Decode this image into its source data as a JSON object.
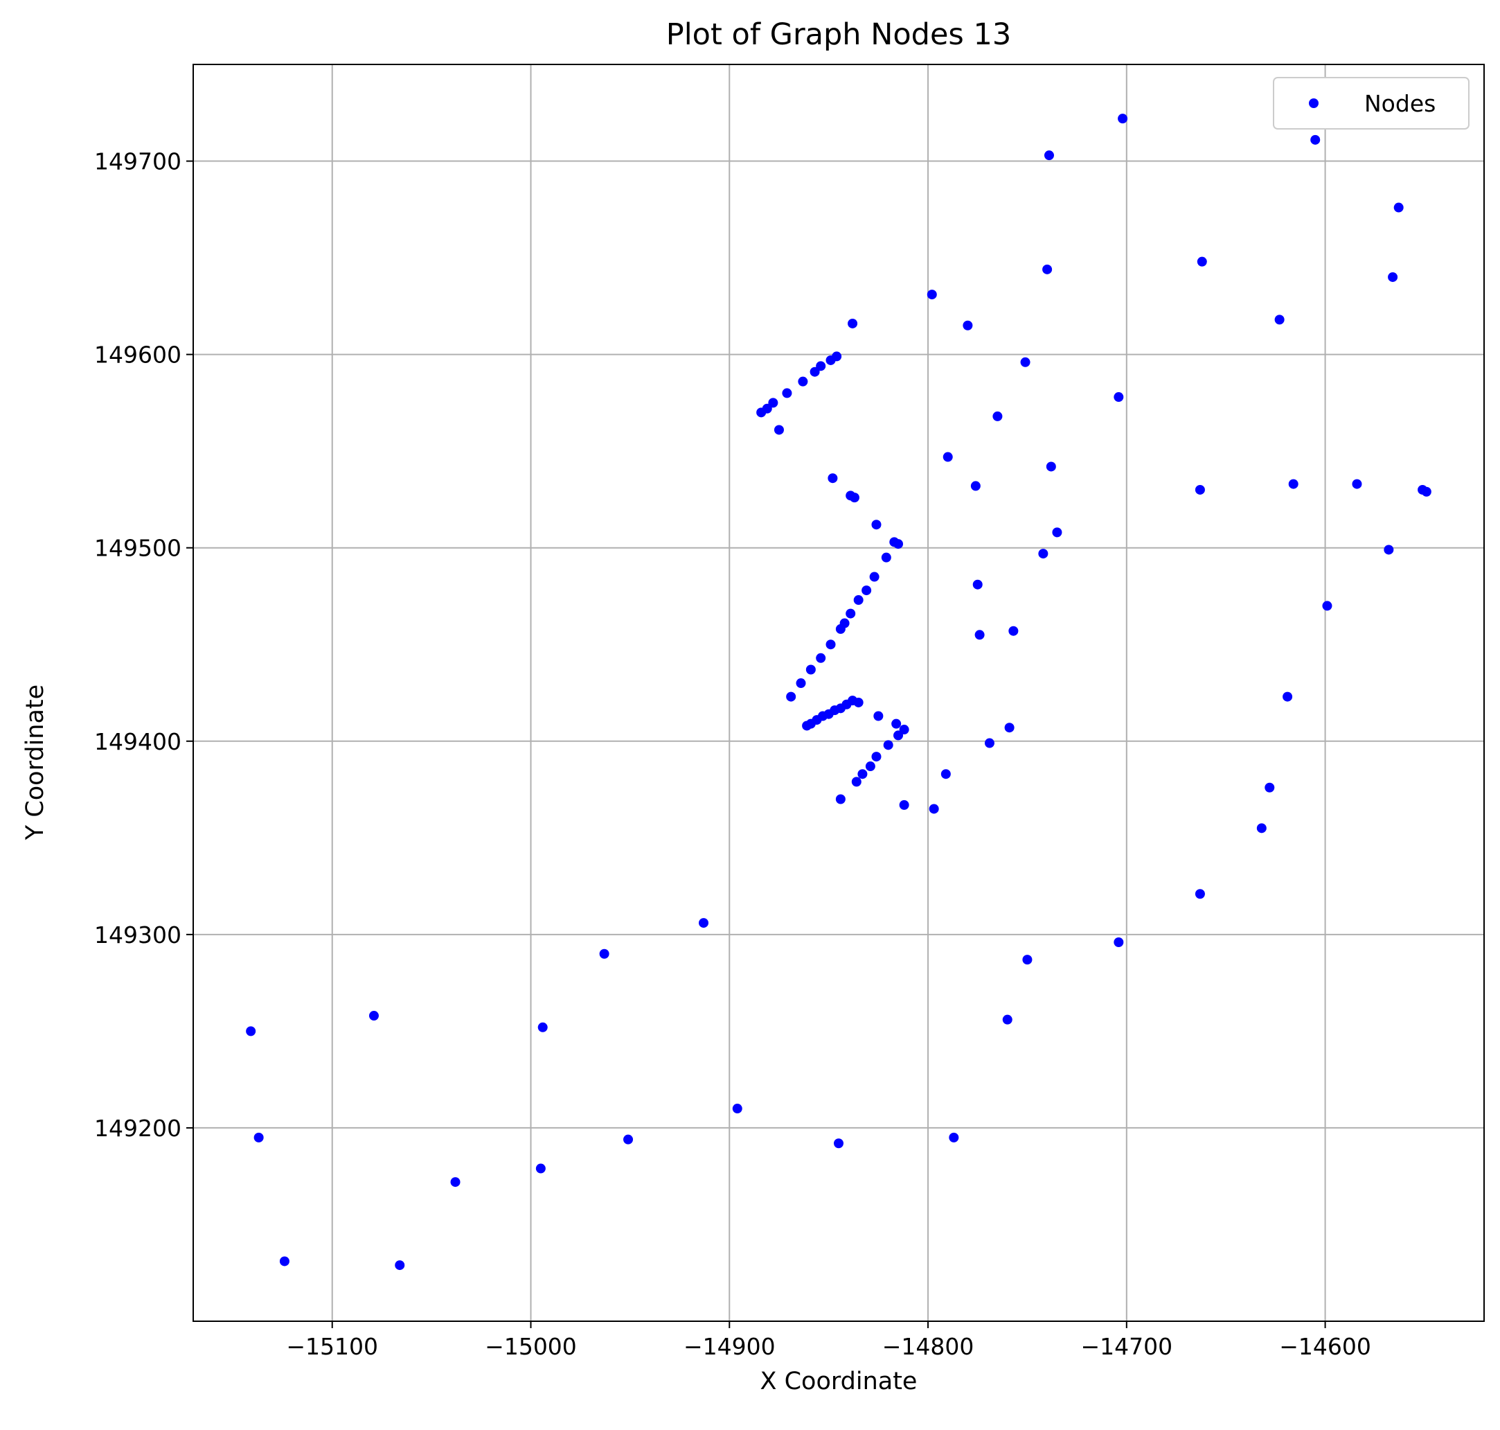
{
  "chart_data": {
    "type": "scatter",
    "title": "Plot of Graph Nodes 13",
    "xlabel": "X Coordinate",
    "ylabel": "Y Coordinate",
    "xlim": [
      -15170,
      -14520
    ],
    "ylim": [
      149100,
      149750
    ],
    "xticks": [
      -15100,
      -15000,
      -14900,
      -14800,
      -14700,
      -14600
    ],
    "xtick_labels": [
      "−15100",
      "−15000",
      "−14900",
      "−14800",
      "−14700",
      "−14600"
    ],
    "yticks": [
      149200,
      149300,
      149400,
      149500,
      149600,
      149700
    ],
    "ytick_labels": [
      "149200",
      "149300",
      "149400",
      "149500",
      "149600",
      "149700"
    ],
    "grid": true,
    "legend_position": "upper right",
    "series": [
      {
        "name": "Nodes",
        "color": "#0000ff",
        "marker": "circle",
        "points": [
          [
            -15141,
            149250
          ],
          [
            -15137,
            149195
          ],
          [
            -15124,
            149131
          ],
          [
            -15079,
            149258
          ],
          [
            -15066,
            149129
          ],
          [
            -15038,
            149172
          ],
          [
            -14995,
            149179
          ],
          [
            -14994,
            149252
          ],
          [
            -14963,
            149290
          ],
          [
            -14951,
            149194
          ],
          [
            -14913,
            149306
          ],
          [
            -14896,
            149210
          ],
          [
            -14845,
            149192
          ],
          [
            -14787,
            149195
          ],
          [
            -14760,
            149256
          ],
          [
            -14750,
            149287
          ],
          [
            -14704,
            149296
          ],
          [
            -14663,
            149321
          ],
          [
            -14632,
            149355
          ],
          [
            -14628,
            149376
          ],
          [
            -14619,
            149423
          ],
          [
            -14599,
            149470
          ],
          [
            -14568,
            149499
          ],
          [
            -14584,
            149533
          ],
          [
            -14616,
            149533
          ],
          [
            -14663,
            149530
          ],
          [
            -14551,
            149530
          ],
          [
            -14549,
            149529
          ],
          [
            -14702,
            149722
          ],
          [
            -14605,
            149711
          ],
          [
            -14739,
            149703
          ],
          [
            -14563,
            149676
          ],
          [
            -14662,
            149648
          ],
          [
            -14740,
            149644
          ],
          [
            -14566,
            149640
          ],
          [
            -14798,
            149631
          ],
          [
            -14623,
            149618
          ],
          [
            -14838,
            149616
          ],
          [
            -14780,
            149615
          ],
          [
            -14751,
            149596
          ],
          [
            -14704,
            149578
          ],
          [
            -14765,
            149568
          ],
          [
            -14790,
            149547
          ],
          [
            -14738,
            149542
          ],
          [
            -14776,
            149532
          ],
          [
            -14735,
            149508
          ],
          [
            -14742,
            149497
          ],
          [
            -14775,
            149481
          ],
          [
            -14774,
            149455
          ],
          [
            -14757,
            149457
          ],
          [
            -14759,
            149407
          ],
          [
            -14769,
            149399
          ],
          [
            -14791,
            149383
          ],
          [
            -14797,
            149365
          ],
          [
            -14812,
            149367
          ],
          [
            -14844,
            149370
          ],
          [
            -14846,
            149599
          ],
          [
            -14849,
            149597
          ],
          [
            -14854,
            149594
          ],
          [
            -14857,
            149591
          ],
          [
            -14863,
            149586
          ],
          [
            -14871,
            149580
          ],
          [
            -14878,
            149575
          ],
          [
            -14881,
            149572
          ],
          [
            -14884,
            149570
          ],
          [
            -14875,
            149561
          ],
          [
            -14848,
            149536
          ],
          [
            -14839,
            149527
          ],
          [
            -14837,
            149526
          ],
          [
            -14826,
            149512
          ],
          [
            -14817,
            149503
          ],
          [
            -14815,
            149502
          ],
          [
            -14821,
            149495
          ],
          [
            -14827,
            149485
          ],
          [
            -14831,
            149478
          ],
          [
            -14835,
            149473
          ],
          [
            -14839,
            149466
          ],
          [
            -14842,
            149461
          ],
          [
            -14844,
            149458
          ],
          [
            -14849,
            149450
          ],
          [
            -14854,
            149443
          ],
          [
            -14859,
            149437
          ],
          [
            -14864,
            149430
          ],
          [
            -14869,
            149423
          ],
          [
            -14835,
            149420
          ],
          [
            -14838,
            149421
          ],
          [
            -14841,
            149419
          ],
          [
            -14844,
            149417
          ],
          [
            -14847,
            149416
          ],
          [
            -14850,
            149414
          ],
          [
            -14853,
            149413
          ],
          [
            -14856,
            149411
          ],
          [
            -14859,
            149409
          ],
          [
            -14861,
            149408
          ],
          [
            -14825,
            149413
          ],
          [
            -14816,
            149409
          ],
          [
            -14812,
            149406
          ],
          [
            -14815,
            149403
          ],
          [
            -14820,
            149398
          ],
          [
            -14826,
            149392
          ],
          [
            -14829,
            149387
          ],
          [
            -14833,
            149383
          ],
          [
            -14836,
            149379
          ]
        ]
      }
    ]
  }
}
